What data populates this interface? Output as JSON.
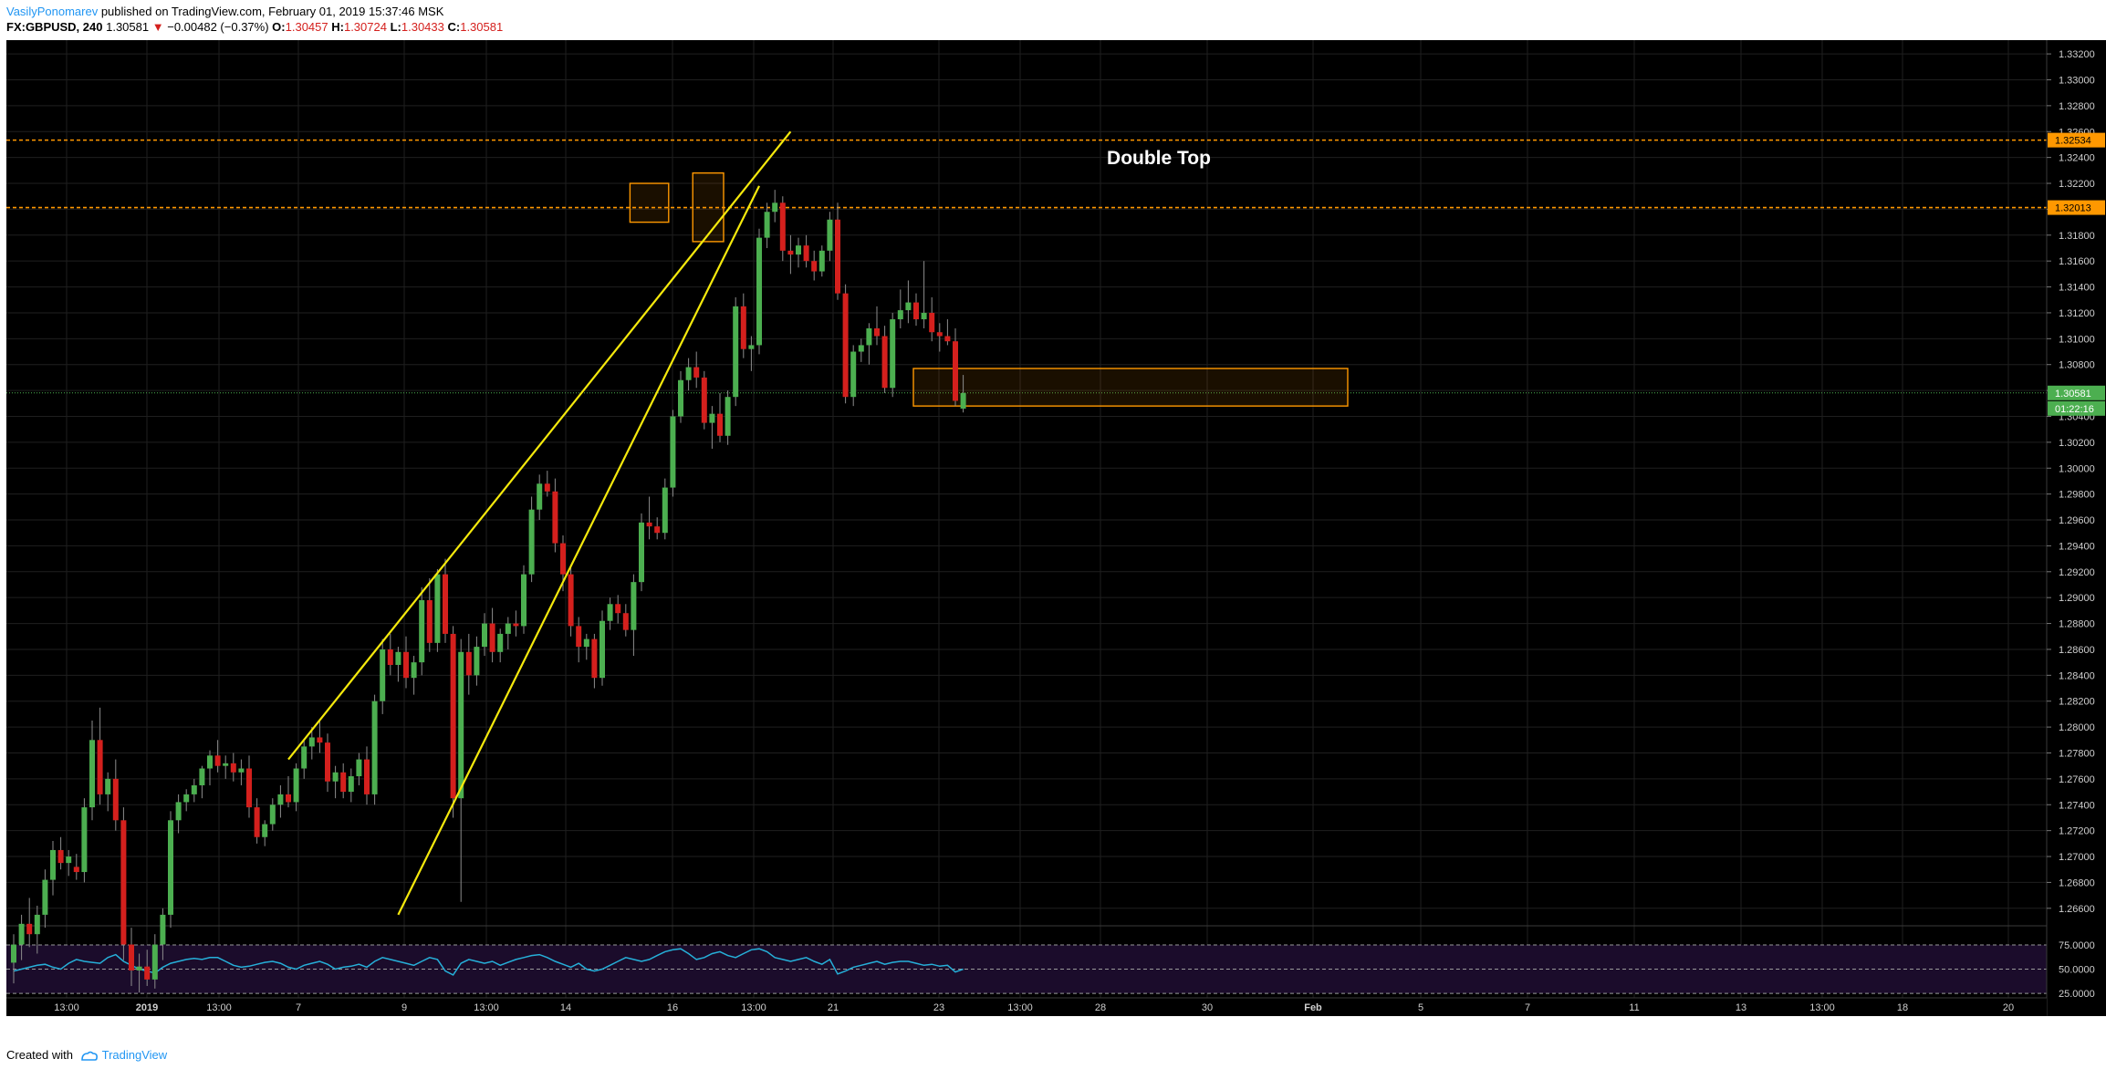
{
  "header": {
    "author": "VasilyPonomarev",
    "published_text": " published on TradingView.com, February 01, 2019 15:37:46 MSK",
    "symbol": "FX:GBPUSD, 240",
    "last": "1.30581",
    "arrow": "▼",
    "change": "−0.00482 (−0.37%)",
    "o_label": "O:",
    "o_val": "1.30457",
    "h_label": "H:",
    "h_val": "1.30724",
    "l_label": "L:",
    "l_val": "1.30433",
    "c_label": "C:",
    "c_val": "1.30581"
  },
  "footer": {
    "created_with": "Created with",
    "brand": "TradingView"
  },
  "colors": {
    "background": "#000000",
    "bull": "#4caf50",
    "bear": "#d4201d",
    "trendline": "#f5e90c",
    "resistance": "#ff9800",
    "current_price": "#4caf50",
    "rsi_line": "#26b0d9",
    "rsi_band": "#1b0c2b"
  },
  "chart_data": {
    "type": "candlestick",
    "symbol": "FX:GBPUSD",
    "timeframe": "240",
    "y_range": [
      1.265,
      1.3325
    ],
    "price_ticks": [
      "1.33200",
      "1.33000",
      "1.32800",
      "1.32600",
      "1.32400",
      "1.32200",
      "1.32000",
      "1.31800",
      "1.31600",
      "1.31400",
      "1.31200",
      "1.31000",
      "1.30800",
      "1.30600",
      "1.30400",
      "1.30200",
      "1.30000",
      "1.29800",
      "1.29600",
      "1.29400",
      "1.29200",
      "1.29000",
      "1.28800",
      "1.28600",
      "1.28400",
      "1.28200",
      "1.28000",
      "1.27800",
      "1.27600",
      "1.27400",
      "1.27200",
      "1.27000",
      "1.26800",
      "1.26600"
    ],
    "time_ticks": [
      "13:00",
      "2019",
      "13:00",
      "7",
      "9",
      "13:00",
      "14",
      "16",
      "13:00",
      "21",
      "23",
      "13:00",
      "28",
      "30",
      "Feb",
      "5",
      "7",
      "11",
      "13",
      "13:00",
      "18",
      "20"
    ],
    "annotation": "Double Top",
    "resistance_levels": [
      {
        "price": 1.32534,
        "label": "1.32534"
      },
      {
        "price": 1.32013,
        "label": "1.32013"
      }
    ],
    "current_price": {
      "price": 1.30581,
      "label": "1.30581",
      "countdown": "01:22:16"
    },
    "support_zone": [
      1.3048,
      1.3077
    ],
    "double_top_boxes": [
      {
        "bar_from": 79,
        "bar_to": 83,
        "low": 1.319,
        "high": 1.322
      },
      {
        "bar_from": 87,
        "bar_to": 90,
        "low": 1.3175,
        "high": 1.3228
      }
    ],
    "wedge_lines": [
      {
        "from": {
          "bar": 35,
          "price": 1.2775
        },
        "to": {
          "bar": 99,
          "price": 1.326
        }
      },
      {
        "from": {
          "bar": 49,
          "price": 1.2655
        },
        "to": {
          "bar": 95,
          "price": 1.3218
        }
      }
    ],
    "candles": [
      [
        1.2618,
        1.264,
        1.2602,
        1.2632
      ],
      [
        1.2632,
        1.2655,
        1.262,
        1.2648
      ],
      [
        1.2648,
        1.2668,
        1.263,
        1.264
      ],
      [
        1.264,
        1.2662,
        1.2625,
        1.2655
      ],
      [
        1.2655,
        1.269,
        1.2645,
        1.2682
      ],
      [
        1.2682,
        1.2712,
        1.267,
        1.2705
      ],
      [
        1.2705,
        1.2715,
        1.269,
        1.2695
      ],
      [
        1.2695,
        1.2705,
        1.2685,
        1.27
      ],
      [
        1.2692,
        1.2702,
        1.2682,
        1.2688
      ],
      [
        1.2688,
        1.2745,
        1.268,
        1.2738
      ],
      [
        1.2738,
        1.2805,
        1.2728,
        1.279
      ],
      [
        1.279,
        1.2815,
        1.274,
        1.2748
      ],
      [
        1.2748,
        1.2765,
        1.2735,
        1.276
      ],
      [
        1.276,
        1.2775,
        1.272,
        1.2728
      ],
      [
        1.2728,
        1.2738,
        1.262,
        1.2632
      ],
      [
        1.2632,
        1.2645,
        1.26,
        1.2612
      ],
      [
        1.2612,
        1.2625,
        1.2595,
        1.2615
      ],
      [
        1.2615,
        1.2628,
        1.26,
        1.2605
      ],
      [
        1.2605,
        1.264,
        1.2598,
        1.2632
      ],
      [
        1.2632,
        1.266,
        1.262,
        1.2655
      ],
      [
        1.2655,
        1.2735,
        1.2645,
        1.2728
      ],
      [
        1.2728,
        1.2748,
        1.2718,
        1.2742
      ],
      [
        1.2742,
        1.2752,
        1.2735,
        1.2748
      ],
      [
        1.2748,
        1.276,
        1.2742,
        1.2755
      ],
      [
        1.2755,
        1.277,
        1.2745,
        1.2768
      ],
      [
        1.2768,
        1.2782,
        1.2755,
        1.2778
      ],
      [
        1.2778,
        1.279,
        1.2765,
        1.277
      ],
      [
        1.277,
        1.2778,
        1.276,
        1.2772
      ],
      [
        1.2772,
        1.278,
        1.2758,
        1.2765
      ],
      [
        1.2765,
        1.2775,
        1.2755,
        1.2768
      ],
      [
        1.2768,
        1.2778,
        1.273,
        1.2738
      ],
      [
        1.2738,
        1.2745,
        1.271,
        1.2715
      ],
      [
        1.2715,
        1.2728,
        1.2708,
        1.2725
      ],
      [
        1.2725,
        1.2745,
        1.272,
        1.274
      ],
      [
        1.274,
        1.2755,
        1.273,
        1.2748
      ],
      [
        1.2748,
        1.2762,
        1.2738,
        1.2742
      ],
      [
        1.2742,
        1.2772,
        1.2735,
        1.2768
      ],
      [
        1.2768,
        1.279,
        1.276,
        1.2785
      ],
      [
        1.2785,
        1.28,
        1.2775,
        1.2792
      ],
      [
        1.2792,
        1.2805,
        1.278,
        1.2788
      ],
      [
        1.2788,
        1.2795,
        1.275,
        1.2758
      ],
      [
        1.2758,
        1.277,
        1.2745,
        1.2765
      ],
      [
        1.2765,
        1.2772,
        1.2745,
        1.275
      ],
      [
        1.275,
        1.2768,
        1.2742,
        1.2762
      ],
      [
        1.2762,
        1.278,
        1.2755,
        1.2775
      ],
      [
        1.2775,
        1.2785,
        1.274,
        1.2748
      ],
      [
        1.2748,
        1.2825,
        1.274,
        1.282
      ],
      [
        1.282,
        1.2868,
        1.281,
        1.286
      ],
      [
        1.286,
        1.2872,
        1.284,
        1.2848
      ],
      [
        1.2848,
        1.2862,
        1.2835,
        1.2858
      ],
      [
        1.2858,
        1.287,
        1.283,
        1.2838
      ],
      [
        1.2838,
        1.2855,
        1.2825,
        1.285
      ],
      [
        1.285,
        1.2908,
        1.284,
        1.2898
      ],
      [
        1.2898,
        1.2915,
        1.2858,
        1.2865
      ],
      [
        1.2865,
        1.2922,
        1.2858,
        1.2918
      ],
      [
        1.2918,
        1.293,
        1.2865,
        1.2872
      ],
      [
        1.2872,
        1.2878,
        1.273,
        1.2745
      ],
      [
        1.2745,
        1.2868,
        1.2665,
        1.2858
      ],
      [
        1.2858,
        1.2872,
        1.2825,
        1.284
      ],
      [
        1.284,
        1.287,
        1.2832,
        1.2862
      ],
      [
        1.2862,
        1.2888,
        1.2855,
        1.288
      ],
      [
        1.288,
        1.2892,
        1.285,
        1.2858
      ],
      [
        1.2858,
        1.2876,
        1.285,
        1.2872
      ],
      [
        1.2872,
        1.2885,
        1.286,
        1.288
      ],
      [
        1.288,
        1.289,
        1.287,
        1.2878
      ],
      [
        1.2878,
        1.2925,
        1.2872,
        1.2918
      ],
      [
        1.2918,
        1.2978,
        1.2912,
        1.2968
      ],
      [
        1.2968,
        1.2995,
        1.296,
        1.2988
      ],
      [
        1.2988,
        1.2998,
        1.2978,
        1.2982
      ],
      [
        1.2982,
        1.2992,
        1.2935,
        1.2942
      ],
      [
        1.2942,
        1.2948,
        1.2905,
        1.2918
      ],
      [
        1.2918,
        1.2925,
        1.287,
        1.2878
      ],
      [
        1.2878,
        1.2885,
        1.285,
        1.2862
      ],
      [
        1.2862,
        1.2872,
        1.2852,
        1.2868
      ],
      [
        1.2868,
        1.2872,
        1.283,
        1.2838
      ],
      [
        1.2838,
        1.289,
        1.2832,
        1.2882
      ],
      [
        1.2882,
        1.29,
        1.2875,
        1.2895
      ],
      [
        1.2895,
        1.2902,
        1.288,
        1.2888
      ],
      [
        1.2888,
        1.2895,
        1.287,
        1.2875
      ],
      [
        1.2875,
        1.2918,
        1.2855,
        1.2912
      ],
      [
        1.2912,
        1.2965,
        1.2905,
        1.2958
      ],
      [
        1.2958,
        1.2978,
        1.2945,
        1.2955
      ],
      [
        1.2955,
        1.2962,
        1.2945,
        1.295
      ],
      [
        1.295,
        1.2992,
        1.2945,
        1.2985
      ],
      [
        1.2985,
        1.3045,
        1.2978,
        1.304
      ],
      [
        1.304,
        1.3075,
        1.3035,
        1.3068
      ],
      [
        1.3068,
        1.3085,
        1.306,
        1.3078
      ],
      [
        1.3078,
        1.309,
        1.3062,
        1.307
      ],
      [
        1.307,
        1.3075,
        1.303,
        1.3035
      ],
      [
        1.3035,
        1.3048,
        1.3015,
        1.3042
      ],
      [
        1.3042,
        1.3058,
        1.302,
        1.3025
      ],
      [
        1.3025,
        1.306,
        1.3018,
        1.3055
      ],
      [
        1.3055,
        1.3132,
        1.3048,
        1.3125
      ],
      [
        1.3125,
        1.3135,
        1.3085,
        1.3092
      ],
      [
        1.3092,
        1.3102,
        1.3075,
        1.3095
      ],
      [
        1.3095,
        1.3185,
        1.3088,
        1.3178
      ],
      [
        1.3178,
        1.3205,
        1.317,
        1.3198
      ],
      [
        1.3198,
        1.3215,
        1.319,
        1.3205
      ],
      [
        1.3205,
        1.321,
        1.316,
        1.3168
      ],
      [
        1.3168,
        1.318,
        1.315,
        1.3165
      ],
      [
        1.3165,
        1.3178,
        1.3155,
        1.3172
      ],
      [
        1.3172,
        1.318,
        1.3155,
        1.316
      ],
      [
        1.316,
        1.3168,
        1.3145,
        1.3152
      ],
      [
        1.3152,
        1.3172,
        1.3148,
        1.3168
      ],
      [
        1.3168,
        1.3198,
        1.316,
        1.3192
      ],
      [
        1.3192,
        1.3205,
        1.313,
        1.3135
      ],
      [
        1.3135,
        1.3142,
        1.305,
        1.3055
      ],
      [
        1.3055,
        1.3095,
        1.3048,
        1.309
      ],
      [
        1.309,
        1.31,
        1.3082,
        1.3095
      ],
      [
        1.3095,
        1.3112,
        1.308,
        1.3108
      ],
      [
        1.3108,
        1.3125,
        1.3095,
        1.3102
      ],
      [
        1.3102,
        1.311,
        1.3058,
        1.3062
      ],
      [
        1.3062,
        1.312,
        1.3055,
        1.3115
      ],
      [
        1.3115,
        1.3138,
        1.3108,
        1.3122
      ],
      [
        1.3122,
        1.3145,
        1.3112,
        1.3128
      ],
      [
        1.3128,
        1.3135,
        1.311,
        1.3115
      ],
      [
        1.3115,
        1.316,
        1.3108,
        1.312
      ],
      [
        1.312,
        1.3132,
        1.3098,
        1.3105
      ],
      [
        1.3105,
        1.3112,
        1.309,
        1.3102
      ],
      [
        1.3102,
        1.3115,
        1.3095,
        1.3098
      ],
      [
        1.3098,
        1.3108,
        1.3048,
        1.3052
      ],
      [
        1.3046,
        1.3072,
        1.3043,
        1.3058
      ]
    ],
    "rsi": {
      "levels": [
        "75.0000",
        "50.0000",
        "25.0000"
      ],
      "range": [
        10,
        90
      ],
      "values": [
        48,
        50,
        52,
        54,
        55,
        52,
        50,
        56,
        60,
        58,
        57,
        56,
        62,
        65,
        58,
        54,
        50,
        48,
        46,
        52,
        56,
        58,
        60,
        61,
        60,
        62,
        62,
        58,
        54,
        52,
        53,
        55,
        57,
        58,
        56,
        52,
        50,
        54,
        56,
        58,
        55,
        50,
        52,
        53,
        55,
        52,
        58,
        62,
        60,
        58,
        56,
        54,
        58,
        62,
        60,
        48,
        44,
        56,
        60,
        58,
        56,
        58,
        54,
        57,
        60,
        62,
        64,
        65,
        62,
        58,
        55,
        52,
        56,
        50,
        48,
        50,
        54,
        58,
        62,
        60,
        58,
        60,
        64,
        68,
        70,
        71,
        66,
        60,
        62,
        66,
        68,
        64,
        62,
        66,
        70,
        71,
        68,
        62,
        60,
        58,
        60,
        62,
        58,
        55,
        60,
        45,
        48,
        52,
        54,
        56,
        58,
        55,
        57,
        58,
        58,
        56,
        54,
        55,
        53,
        54,
        47,
        50
      ]
    }
  }
}
